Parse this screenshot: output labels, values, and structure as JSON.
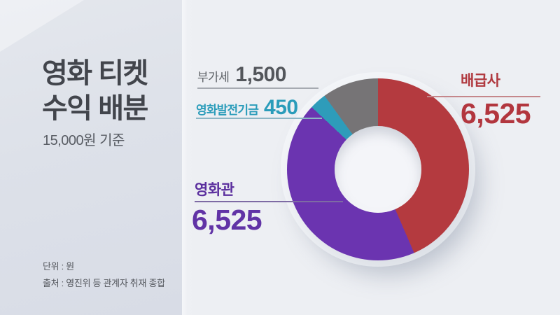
{
  "panel": {
    "title_line1": "영화 티켓",
    "title_line2": "수익 배분",
    "subtitle": "15,000원 기준",
    "unit_note": "단위 : 원",
    "source_note": "출처 : 영진위 등 관계자 취재 종합"
  },
  "callouts": {
    "distributor": {
      "label": "배급사",
      "value": "6,525"
    },
    "cinema": {
      "label": "영화관",
      "value": "6,525"
    },
    "fund": {
      "label": "영화발전기금",
      "value": "450"
    },
    "vat": {
      "label": "부가세",
      "value": "1,500"
    }
  },
  "chart_data": {
    "type": "pie",
    "variant": "donut",
    "title": "영화 티켓 수익 배분",
    "subtitle": "15,000원 기준",
    "unit": "원",
    "total": 15000,
    "start_angle_deg": 0,
    "direction": "clockwise",
    "legend_position": "callouts",
    "segments": [
      {
        "label": "배급사",
        "value": 6525,
        "display": "6,525",
        "color": "#b43a3f"
      },
      {
        "label": "영화관",
        "value": 6525,
        "display": "6,525",
        "color": "#6b34b0"
      },
      {
        "label": "영화발전기금",
        "value": 450,
        "display": "450",
        "color": "#2e9cba"
      },
      {
        "label": "부가세",
        "value": 1500,
        "display": "1,500",
        "color": "#767476"
      }
    ]
  },
  "colors": {
    "accent_red": "#b2363e",
    "accent_purple": "#6133a6",
    "accent_teal": "#2a9cba",
    "accent_gray": "#53565b",
    "left_panel_bg": "#dde1e9",
    "card_bg": "#edeff3"
  }
}
